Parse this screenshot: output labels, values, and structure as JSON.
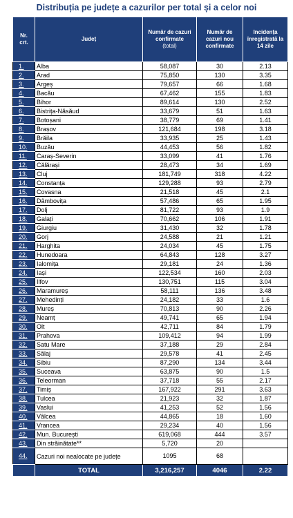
{
  "title": "Distribuția pe județe a cazurilor per total și a celor noi",
  "headers": {
    "nr_line1": "Nr.",
    "nr_line2": "crt.",
    "judet": "Județ",
    "total_main": "Număr de cazuri confirmate",
    "total_sub": "(total)",
    "noi": "Număr de cazuri nou confirmate",
    "incidenta": "Incidența înregistrată la 14 zile"
  },
  "rows": [
    {
      "nr": "1.",
      "judet": "Alba",
      "total": "58,087",
      "noi": "30",
      "incidenta": "2.13"
    },
    {
      "nr": "2.",
      "judet": "Arad",
      "total": "75,850",
      "noi": "130",
      "incidenta": "3.35"
    },
    {
      "nr": "3.",
      "judet": "Argeș",
      "total": "79,657",
      "noi": "66",
      "incidenta": "1.68"
    },
    {
      "nr": "4.",
      "judet": "Bacău",
      "total": "67,462",
      "noi": "155",
      "incidenta": "1.83"
    },
    {
      "nr": "5.",
      "judet": "Bihor",
      "total": "89,614",
      "noi": "130",
      "incidenta": "2.52"
    },
    {
      "nr": "6.",
      "judet": "Bistrița-Năsăud",
      "total": "33,679",
      "noi": "51",
      "incidenta": "1.63"
    },
    {
      "nr": "7.",
      "judet": "Botoșani",
      "total": "38,779",
      "noi": "69",
      "incidenta": "1.41"
    },
    {
      "nr": "8.",
      "judet": "Brașov",
      "total": "121,684",
      "noi": "198",
      "incidenta": "3.18"
    },
    {
      "nr": "9.",
      "judet": "Brăila",
      "total": "33,935",
      "noi": "25",
      "incidenta": "1.43"
    },
    {
      "nr": "10.",
      "judet": "Buzău",
      "total": "44,453",
      "noi": "56",
      "incidenta": "1.82"
    },
    {
      "nr": "11.",
      "judet": "Caraș-Severin",
      "total": "33,099",
      "noi": "41",
      "incidenta": "1.76"
    },
    {
      "nr": "12.",
      "judet": "Călărași",
      "total": "28,473",
      "noi": "34",
      "incidenta": "1.69"
    },
    {
      "nr": "13.",
      "judet": "Cluj",
      "total": "181,749",
      "noi": "318",
      "incidenta": "4.22"
    },
    {
      "nr": "14.",
      "judet": "Constanța",
      "total": "129,288",
      "noi": "93",
      "incidenta": "2.79"
    },
    {
      "nr": "15.",
      "judet": "Covasna",
      "total": "21,518",
      "noi": "45",
      "incidenta": "2.1"
    },
    {
      "nr": "16.",
      "judet": "Dâmbovița",
      "total": "57,486",
      "noi": "65",
      "incidenta": "1.95"
    },
    {
      "nr": "17.",
      "judet": "Dolj",
      "total": "81,722",
      "noi": "93",
      "incidenta": "1.9"
    },
    {
      "nr": "18.",
      "judet": "Galați",
      "total": "70,662",
      "noi": "106",
      "incidenta": "1.91"
    },
    {
      "nr": "19.",
      "judet": "Giurgiu",
      "total": "31,430",
      "noi": "32",
      "incidenta": "1.78"
    },
    {
      "nr": "20.",
      "judet": "Gorj",
      "total": "24,588",
      "noi": "21",
      "incidenta": "1.21"
    },
    {
      "nr": "21.",
      "judet": "Harghita",
      "total": "24,034",
      "noi": "45",
      "incidenta": "1.75"
    },
    {
      "nr": "22.",
      "judet": "Hunedoara",
      "total": "64,843",
      "noi": "128",
      "incidenta": "3.27"
    },
    {
      "nr": "23.",
      "judet": "Ialomița",
      "total": "29,181",
      "noi": "24",
      "incidenta": "1.36"
    },
    {
      "nr": "24.",
      "judet": "Iași",
      "total": "122,534",
      "noi": "160",
      "incidenta": "2.03"
    },
    {
      "nr": "25.",
      "judet": "Ilfov",
      "total": "130,751",
      "noi": "115",
      "incidenta": "3.04"
    },
    {
      "nr": "26.",
      "judet": "Maramureș",
      "total": "58,111",
      "noi": "136",
      "incidenta": "3.48"
    },
    {
      "nr": "27.",
      "judet": "Mehedinți",
      "total": "24,182",
      "noi": "33",
      "incidenta": "1.6"
    },
    {
      "nr": "28.",
      "judet": "Mureș",
      "total": "70,813",
      "noi": "90",
      "incidenta": "2.26"
    },
    {
      "nr": "29.",
      "judet": "Neamț",
      "total": "49,741",
      "noi": "65",
      "incidenta": "1.94"
    },
    {
      "nr": "30.",
      "judet": "Olt",
      "total": "42,711",
      "noi": "84",
      "incidenta": "1.79"
    },
    {
      "nr": "31.",
      "judet": "Prahova",
      "total": "109,412",
      "noi": "94",
      "incidenta": "1.99"
    },
    {
      "nr": "32.",
      "judet": "Satu Mare",
      "total": "37,188",
      "noi": "29",
      "incidenta": "2.84"
    },
    {
      "nr": "33.",
      "judet": "Sălaj",
      "total": "29,578",
      "noi": "41",
      "incidenta": "2.45"
    },
    {
      "nr": "34.",
      "judet": "Sibiu",
      "total": "87,290",
      "noi": "134",
      "incidenta": "3.44"
    },
    {
      "nr": "35.",
      "judet": "Suceava",
      "total": "63,875",
      "noi": "90",
      "incidenta": "1.5"
    },
    {
      "nr": "36.",
      "judet": "Teleorman",
      "total": "37,718",
      "noi": "55",
      "incidenta": "2.17"
    },
    {
      "nr": "37.",
      "judet": "Timiș",
      "total": "167,922",
      "noi": "291",
      "incidenta": "3.63"
    },
    {
      "nr": "38.",
      "judet": "Tulcea",
      "total": "21,923",
      "noi": "32",
      "incidenta": "1.87"
    },
    {
      "nr": "39.",
      "judet": "Vaslui",
      "total": "41,253",
      "noi": "52",
      "incidenta": "1.56"
    },
    {
      "nr": "40.",
      "judet": "Vâlcea",
      "total": "44,865",
      "noi": "18",
      "incidenta": "1.60"
    },
    {
      "nr": "41.",
      "judet": "Vrancea",
      "total": "29,234",
      "noi": "40",
      "incidenta": "1.56"
    },
    {
      "nr": "42.",
      "judet": "Mun. București",
      "total": "619,068",
      "noi": "444",
      "incidenta": "3.57"
    },
    {
      "nr": "43.",
      "judet": "Din străinătate**",
      "total": "5,720",
      "noi": "20",
      "incidenta": ""
    },
    {
      "nr": "44.",
      "judet": "Cazuri noi nealocate pe județe",
      "total": "1095",
      "noi": "68",
      "incidenta": ""
    }
  ],
  "footer": {
    "label": "TOTAL",
    "total": "3,216,257",
    "noi": "4046",
    "incidenta": "2.22"
  },
  "colors": {
    "header_bg": "#1f3f7a",
    "header_text": "#ffffff",
    "title_text": "#1f3f7a"
  }
}
